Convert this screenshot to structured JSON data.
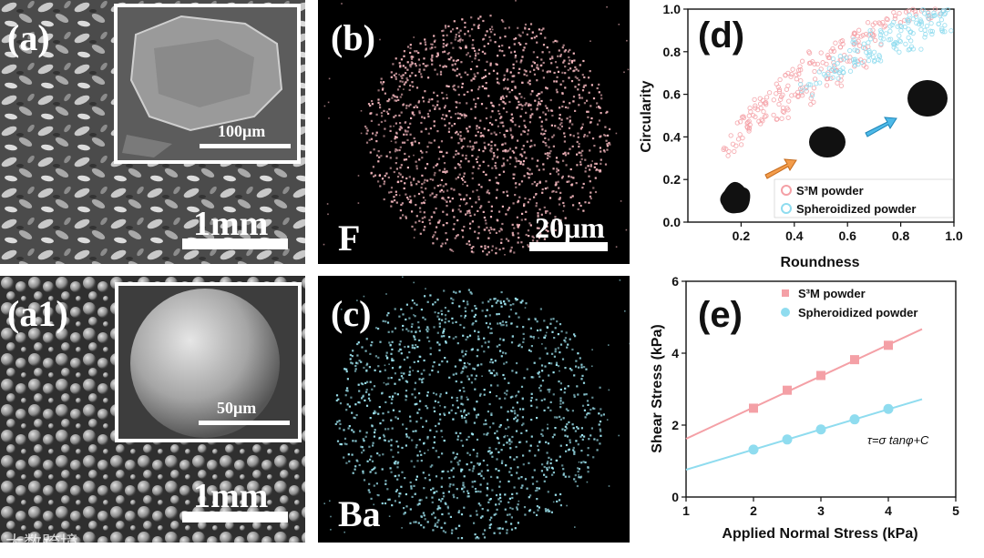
{
  "panels": {
    "a": {
      "label": "(a)",
      "inset_scale": "100μm",
      "scale": "1mm"
    },
    "a1": {
      "label": "(a1)",
      "inset_scale": "50μm",
      "scale": "1mm"
    },
    "b": {
      "label": "(b)",
      "element": "F",
      "scale": "20μm"
    },
    "c": {
      "label": "(c)",
      "element": "Ba"
    },
    "d": {
      "label": "(d)"
    },
    "e": {
      "label": "(e)",
      "equation": "τ=σ tanφ+C"
    }
  },
  "watermark": "大数跨境",
  "colors": {
    "s3m": "#f4a0a6",
    "spheroidized": "#8fdcef",
    "edx_f": "#f7b9c0",
    "edx_ba": "#9fe6f2"
  },
  "chart_data": [
    {
      "panel": "d",
      "type": "scatter",
      "xlabel": "Roundness",
      "ylabel": "Circularity",
      "xlim": [
        0.0,
        1.0
      ],
      "ylim": [
        0.0,
        1.0
      ],
      "xticks": [
        "0.2",
        "0.4",
        "0.6",
        "0.8",
        "1.0"
      ],
      "yticks": [
        "0.0",
        "0.2",
        "0.4",
        "0.6",
        "0.8",
        "1.0"
      ],
      "legend_position": "bottom-right",
      "series": [
        {
          "name": "S³M powder",
          "marker": "hollow-circle",
          "color": "#f4a0a6",
          "points": [
            [
              0.15,
              0.33
            ],
            [
              0.18,
              0.38
            ],
            [
              0.2,
              0.44
            ],
            [
              0.22,
              0.47
            ],
            [
              0.25,
              0.52
            ],
            [
              0.28,
              0.55
            ],
            [
              0.3,
              0.58
            ],
            [
              0.33,
              0.61
            ],
            [
              0.36,
              0.66
            ],
            [
              0.4,
              0.69
            ],
            [
              0.44,
              0.73
            ],
            [
              0.48,
              0.77
            ],
            [
              0.52,
              0.8
            ],
            [
              0.56,
              0.83
            ],
            [
              0.6,
              0.86
            ],
            [
              0.65,
              0.89
            ],
            [
              0.7,
              0.92
            ],
            [
              0.75,
              0.94
            ],
            [
              0.8,
              0.96
            ],
            [
              0.85,
              0.97
            ],
            [
              0.9,
              0.98
            ],
            [
              0.95,
              0.99
            ],
            [
              0.25,
              0.45
            ],
            [
              0.3,
              0.5
            ],
            [
              0.35,
              0.55
            ],
            [
              0.4,
              0.6
            ],
            [
              0.45,
              0.64
            ],
            [
              0.5,
              0.69
            ],
            [
              0.55,
              0.73
            ],
            [
              0.6,
              0.78
            ],
            [
              0.65,
              0.82
            ],
            [
              0.7,
              0.86
            ],
            [
              0.35,
              0.5
            ],
            [
              0.45,
              0.58
            ],
            [
              0.55,
              0.66
            ],
            [
              0.65,
              0.74
            ]
          ]
        },
        {
          "name": "Spheroidized powder",
          "marker": "hollow-circle",
          "color": "#8fdcef",
          "points": [
            [
              0.45,
              0.62
            ],
            [
              0.5,
              0.68
            ],
            [
              0.55,
              0.74
            ],
            [
              0.6,
              0.79
            ],
            [
              0.65,
              0.83
            ],
            [
              0.7,
              0.87
            ],
            [
              0.75,
              0.9
            ],
            [
              0.8,
              0.93
            ],
            [
              0.85,
              0.95
            ],
            [
              0.9,
              0.97
            ],
            [
              0.95,
              0.985
            ],
            [
              0.98,
              0.99
            ],
            [
              0.6,
              0.72
            ],
            [
              0.65,
              0.76
            ],
            [
              0.7,
              0.8
            ],
            [
              0.75,
              0.84
            ],
            [
              0.8,
              0.87
            ],
            [
              0.85,
              0.9
            ],
            [
              0.9,
              0.93
            ],
            [
              0.95,
              0.95
            ],
            [
              0.55,
              0.69
            ],
            [
              0.7,
              0.77
            ],
            [
              0.8,
              0.82
            ],
            [
              0.9,
              0.88
            ],
            [
              0.97,
              0.92
            ],
            [
              0.85,
              0.84
            ]
          ]
        }
      ]
    },
    {
      "panel": "e",
      "type": "scatter",
      "xlabel": "Applied Normal Stress (kPa)",
      "ylabel": "Shear Stress (kPa)",
      "xlim": [
        1,
        5
      ],
      "ylim": [
        0,
        6
      ],
      "xticks": [
        "1",
        "2",
        "3",
        "4",
        "5"
      ],
      "yticks": [
        "0",
        "2",
        "4",
        "6"
      ],
      "legend_position": "top-right",
      "series": [
        {
          "name": "S³M powder",
          "marker": "square",
          "color": "#f4a0a6",
          "x": [
            2.0,
            2.5,
            3.0,
            3.5,
            4.0
          ],
          "y": [
            2.47,
            2.97,
            3.38,
            3.82,
            4.22
          ],
          "fit": {
            "x": [
              1.0,
              4.5
            ],
            "y": [
              1.62,
              4.67
            ]
          }
        },
        {
          "name": "Spheroidized powder",
          "marker": "circle",
          "color": "#8fdcef",
          "x": [
            2.0,
            2.5,
            3.0,
            3.5,
            4.0
          ],
          "y": [
            1.32,
            1.6,
            1.88,
            2.16,
            2.45
          ],
          "fit": {
            "x": [
              1.0,
              4.5
            ],
            "y": [
              0.76,
              2.72
            ]
          }
        }
      ]
    }
  ]
}
